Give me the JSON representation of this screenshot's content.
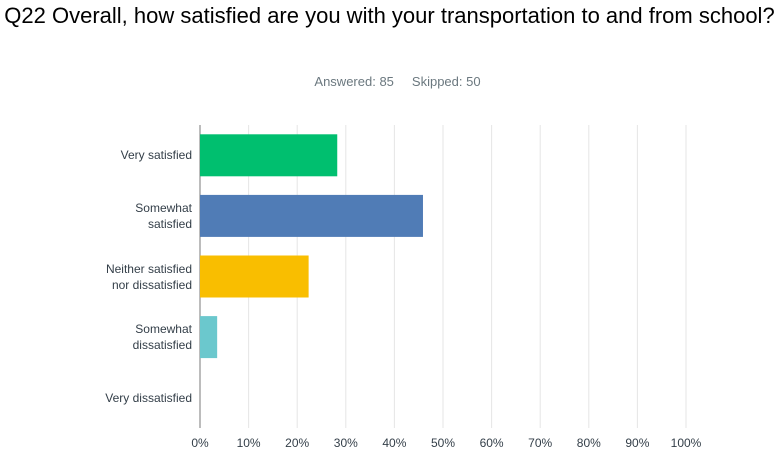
{
  "chart_data": {
    "type": "hbar",
    "title": "Q22 Overall, how satisfied are you with your transportation to and from school?",
    "answered": "Answered: 85",
    "skipped": "Skipped: 50",
    "categories": [
      "Very satisfied",
      "Somewhat satisfied",
      "Neither satisfied nor dissatisfied",
      "Somewhat dissatisfied",
      "Very dissatisfied"
    ],
    "values": [
      28.24,
      45.88,
      22.35,
      3.53,
      0
    ],
    "colors": [
      "#00bf6f",
      "#507cb6",
      "#f9be00",
      "#6bc8cd",
      "#ff8b4f"
    ],
    "xlim": [
      0,
      100
    ],
    "xticks": [
      {
        "value": 0,
        "label": "0%"
      },
      {
        "value": 10,
        "label": "10%"
      },
      {
        "value": 20,
        "label": "20%"
      },
      {
        "value": 30,
        "label": "30%"
      },
      {
        "value": 40,
        "label": "40%"
      },
      {
        "value": 50,
        "label": "50%"
      },
      {
        "value": 60,
        "label": "60%"
      },
      {
        "value": 70,
        "label": "70%"
      },
      {
        "value": 80,
        "label": "80%"
      },
      {
        "value": 90,
        "label": "90%"
      },
      {
        "value": 100,
        "label": "100%"
      }
    ],
    "grid": true
  }
}
